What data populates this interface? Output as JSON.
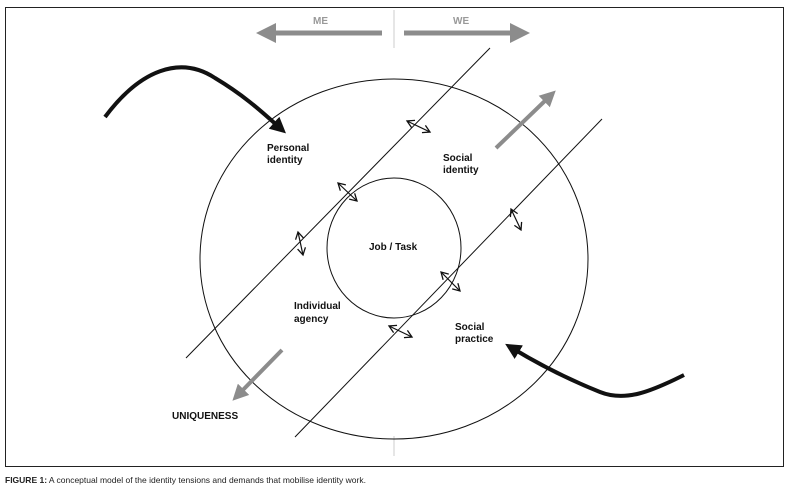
{
  "axis": {
    "left_label": "ME",
    "right_label": "WE"
  },
  "labels": {
    "personal_identity": [
      "Personal",
      "identity"
    ],
    "social_identity": [
      "Social",
      "identity"
    ],
    "job_task": "Job / Task",
    "individual_agency": [
      "Individual",
      "agency"
    ],
    "social_practice": [
      "Social",
      "practice"
    ],
    "uniqueness": "UNIQUENESS"
  },
  "caption": {
    "prefix": "FIGURE 1:",
    "text": " A conceptual model of the identity tensions and demands that mobilise identity work."
  },
  "colors": {
    "line": "#111111",
    "gray_arrow": "#8c8c8c",
    "divider": "#cccccc"
  }
}
